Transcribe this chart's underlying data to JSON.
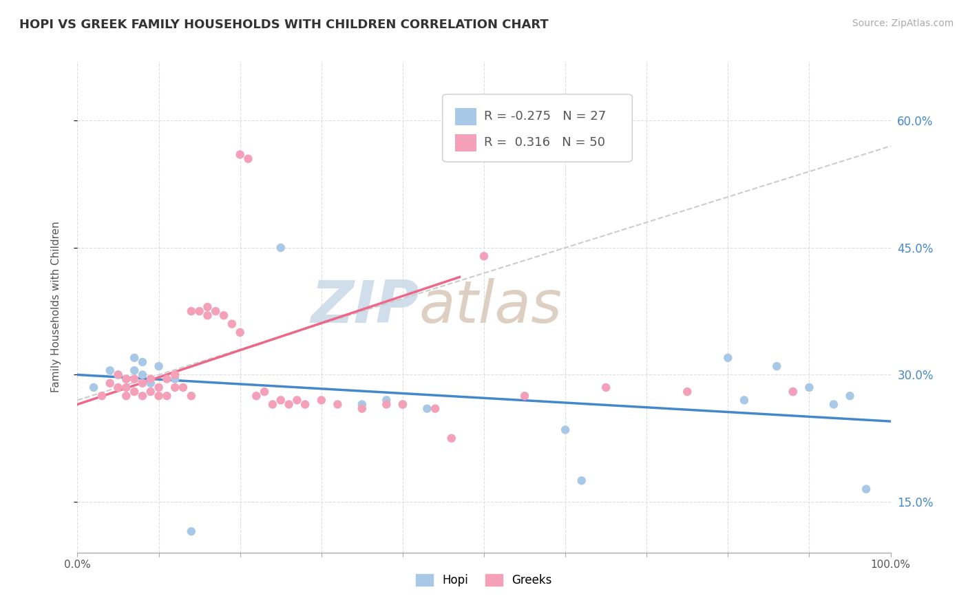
{
  "title": "HOPI VS GREEK FAMILY HOUSEHOLDS WITH CHILDREN CORRELATION CHART",
  "source": "Source: ZipAtlas.com",
  "ylabel": "Family Households with Children",
  "xlim": [
    0.0,
    1.0
  ],
  "ylim": [
    0.09,
    0.67
  ],
  "ytick_positions": [
    0.15,
    0.3,
    0.45,
    0.6
  ],
  "yticklabels": [
    "15.0%",
    "30.0%",
    "45.0%",
    "60.0%"
  ],
  "hopi_R": -0.275,
  "hopi_N": 27,
  "greek_R": 0.316,
  "greek_N": 50,
  "hopi_color": "#a8c8e8",
  "greek_color": "#f4a0b8",
  "hopi_line_color": "#4488cc",
  "greek_line_color": "#ee6688",
  "trend_line_color": "#cccccc",
  "watermark_zip": "ZIP",
  "watermark_atlas": "atlas",
  "hopi_points": [
    [
      0.02,
      0.285
    ],
    [
      0.04,
      0.305
    ],
    [
      0.05,
      0.3
    ],
    [
      0.06,
      0.295
    ],
    [
      0.07,
      0.305
    ],
    [
      0.07,
      0.32
    ],
    [
      0.08,
      0.3
    ],
    [
      0.08,
      0.315
    ],
    [
      0.09,
      0.29
    ],
    [
      0.1,
      0.31
    ],
    [
      0.12,
      0.295
    ],
    [
      0.14,
      0.115
    ],
    [
      0.25,
      0.45
    ],
    [
      0.35,
      0.265
    ],
    [
      0.38,
      0.27
    ],
    [
      0.4,
      0.265
    ],
    [
      0.43,
      0.26
    ],
    [
      0.6,
      0.235
    ],
    [
      0.62,
      0.175
    ],
    [
      0.8,
      0.32
    ],
    [
      0.82,
      0.27
    ],
    [
      0.86,
      0.31
    ],
    [
      0.88,
      0.28
    ],
    [
      0.9,
      0.285
    ],
    [
      0.93,
      0.265
    ],
    [
      0.95,
      0.275
    ],
    [
      0.97,
      0.165
    ]
  ],
  "greek_points": [
    [
      0.03,
      0.275
    ],
    [
      0.04,
      0.29
    ],
    [
      0.05,
      0.285
    ],
    [
      0.05,
      0.3
    ],
    [
      0.06,
      0.275
    ],
    [
      0.06,
      0.285
    ],
    [
      0.06,
      0.295
    ],
    [
      0.07,
      0.28
    ],
    [
      0.07,
      0.295
    ],
    [
      0.08,
      0.275
    ],
    [
      0.08,
      0.29
    ],
    [
      0.09,
      0.28
    ],
    [
      0.09,
      0.295
    ],
    [
      0.1,
      0.275
    ],
    [
      0.1,
      0.285
    ],
    [
      0.11,
      0.275
    ],
    [
      0.11,
      0.295
    ],
    [
      0.12,
      0.285
    ],
    [
      0.12,
      0.3
    ],
    [
      0.13,
      0.285
    ],
    [
      0.14,
      0.275
    ],
    [
      0.14,
      0.375
    ],
    [
      0.15,
      0.375
    ],
    [
      0.16,
      0.37
    ],
    [
      0.16,
      0.38
    ],
    [
      0.17,
      0.375
    ],
    [
      0.18,
      0.37
    ],
    [
      0.19,
      0.36
    ],
    [
      0.2,
      0.35
    ],
    [
      0.2,
      0.56
    ],
    [
      0.21,
      0.555
    ],
    [
      0.22,
      0.275
    ],
    [
      0.23,
      0.28
    ],
    [
      0.24,
      0.265
    ],
    [
      0.25,
      0.27
    ],
    [
      0.26,
      0.265
    ],
    [
      0.27,
      0.27
    ],
    [
      0.28,
      0.265
    ],
    [
      0.3,
      0.27
    ],
    [
      0.32,
      0.265
    ],
    [
      0.35,
      0.26
    ],
    [
      0.38,
      0.265
    ],
    [
      0.4,
      0.265
    ],
    [
      0.44,
      0.26
    ],
    [
      0.46,
      0.225
    ],
    [
      0.5,
      0.44
    ],
    [
      0.55,
      0.275
    ],
    [
      0.65,
      0.285
    ],
    [
      0.75,
      0.28
    ],
    [
      0.88,
      0.28
    ]
  ]
}
